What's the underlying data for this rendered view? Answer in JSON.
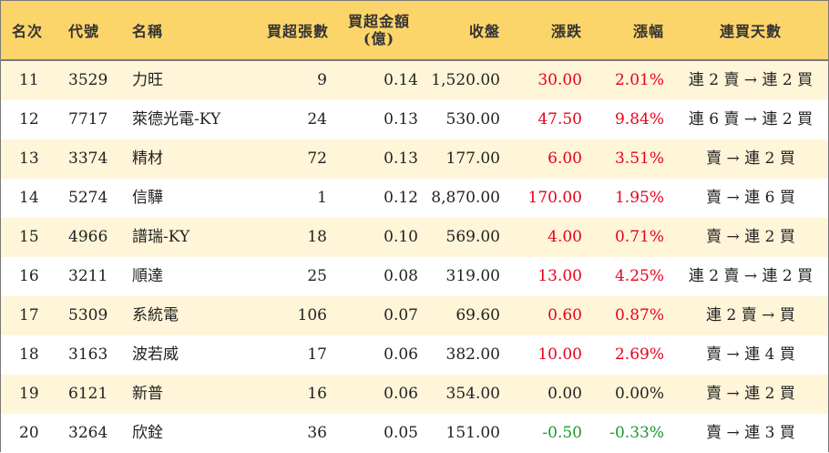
{
  "colors": {
    "header_bg": "#fcd56a",
    "odd_row_bg": "#fff5d9",
    "up": "#e8001c",
    "down": "#1a9a2a",
    "flat": "#222222"
  },
  "headers": {
    "rank": "名次",
    "code": "代號",
    "name": "名稱",
    "net_buy_lots": "買超張數",
    "net_buy_amount_line1": "買超金額",
    "net_buy_amount_line2": "(億)",
    "close": "收盤",
    "change": "漲跌",
    "change_pct": "漲幅",
    "consecutive_days": "連買天數"
  },
  "rows": [
    {
      "rank": "11",
      "code": "3529",
      "name": "力旺",
      "lots": "9",
      "amount": "0.14",
      "close": "1,520.00",
      "change": "30.00",
      "pct": "2.01%",
      "days": "連 2 賣 → 連 2 買",
      "dir": "up"
    },
    {
      "rank": "12",
      "code": "7717",
      "name": "萊德光電-KY",
      "lots": "24",
      "amount": "0.13",
      "close": "530.00",
      "change": "47.50",
      "pct": "9.84%",
      "days": "連 6 賣 → 連 2 買",
      "dir": "up"
    },
    {
      "rank": "13",
      "code": "3374",
      "name": "精材",
      "lots": "72",
      "amount": "0.13",
      "close": "177.00",
      "change": "6.00",
      "pct": "3.51%",
      "days": "賣 → 連 2 買",
      "dir": "up"
    },
    {
      "rank": "14",
      "code": "5274",
      "name": "信驊",
      "lots": "1",
      "amount": "0.12",
      "close": "8,870.00",
      "change": "170.00",
      "pct": "1.95%",
      "days": "賣 → 連 6 買",
      "dir": "up"
    },
    {
      "rank": "15",
      "code": "4966",
      "name": "譜瑞-KY",
      "lots": "18",
      "amount": "0.10",
      "close": "569.00",
      "change": "4.00",
      "pct": "0.71%",
      "days": "賣 → 連 2 買",
      "dir": "up"
    },
    {
      "rank": "16",
      "code": "3211",
      "name": "順達",
      "lots": "25",
      "amount": "0.08",
      "close": "319.00",
      "change": "13.00",
      "pct": "4.25%",
      "days": "連 2 賣 → 連 2 買",
      "dir": "up"
    },
    {
      "rank": "17",
      "code": "5309",
      "name": "系統電",
      "lots": "106",
      "amount": "0.07",
      "close": "69.60",
      "change": "0.60",
      "pct": "0.87%",
      "days": "連 2 賣 → 買",
      "dir": "up"
    },
    {
      "rank": "18",
      "code": "3163",
      "name": "波若威",
      "lots": "17",
      "amount": "0.06",
      "close": "382.00",
      "change": "10.00",
      "pct": "2.69%",
      "days": "賣 → 連 4 買",
      "dir": "up"
    },
    {
      "rank": "19",
      "code": "6121",
      "name": "新普",
      "lots": "16",
      "amount": "0.06",
      "close": "354.00",
      "change": "0.00",
      "pct": "0.00%",
      "days": "賣 → 連 2 買",
      "dir": "flat"
    },
    {
      "rank": "20",
      "code": "3264",
      "name": "欣銓",
      "lots": "36",
      "amount": "0.05",
      "close": "151.00",
      "change": "-0.50",
      "pct": "-0.33%",
      "days": "賣 → 連 3 買",
      "dir": "down"
    }
  ]
}
